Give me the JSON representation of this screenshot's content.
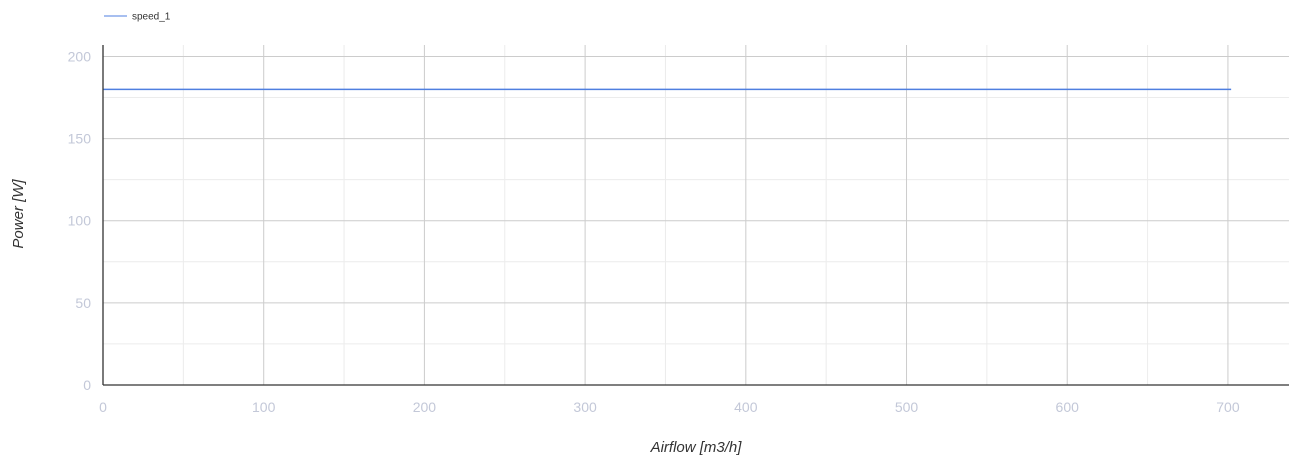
{
  "chart_data": {
    "type": "line",
    "title": "",
    "xlabel": "Airflow [m3/h]",
    "ylabel": "Power [W]",
    "xlim": [
      0,
      738
    ],
    "ylim": [
      0,
      207
    ],
    "x_ticks": [
      0,
      100,
      200,
      300,
      400,
      500,
      600,
      700
    ],
    "y_ticks": [
      0,
      50,
      100,
      150,
      200
    ],
    "x_minor_grid": [
      50,
      150,
      250,
      350,
      450,
      550,
      650
    ],
    "y_minor_grid": [
      25,
      75,
      125,
      175
    ],
    "grid": true,
    "legend_position": "top-left",
    "series": [
      {
        "name": "speed_1",
        "color": "#4f7fe0",
        "x": [
          0,
          702
        ],
        "y": [
          180,
          180
        ]
      }
    ]
  }
}
